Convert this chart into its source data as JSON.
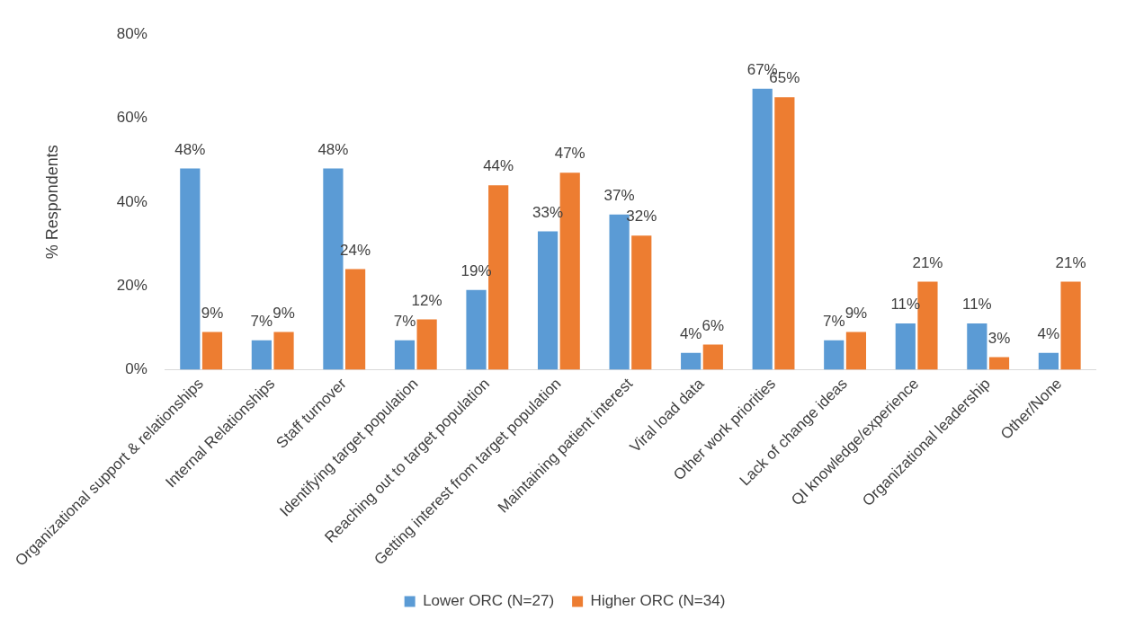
{
  "chart_data": {
    "type": "bar",
    "ylabel": "% Respondents",
    "categories": [
      "Organizational support & relationships",
      "Internal Relationships",
      "Staff turnover",
      "Identifying target population",
      "Reaching out to target population",
      "Getting interest from target population",
      "Maintaining patient interest",
      "Viral load data",
      "Other work priorities",
      "Lack of change ideas",
      "QI knowledge/experience",
      "Organizational leadership",
      "Other/None"
    ],
    "series": [
      {
        "name": "Lower ORC (N=27)",
        "color": "#5b9bd5",
        "values": [
          48,
          7,
          48,
          7,
          19,
          33,
          37,
          4,
          67,
          7,
          11,
          11,
          4
        ],
        "value_labels": [
          "48%",
          "7%",
          "48%",
          "7%",
          "19%",
          "33%",
          "37%",
          "4%",
          "67%",
          "7%",
          "11%",
          "11%",
          "4%"
        ]
      },
      {
        "name": "Higher ORC (N=34)",
        "color": "#ed7d31",
        "values": [
          9,
          9,
          24,
          12,
          44,
          47,
          32,
          6,
          65,
          9,
          21,
          3,
          21
        ],
        "value_labels": [
          "9%",
          "9%",
          "24%",
          "12%",
          "44%",
          "47%",
          "32%",
          "6%",
          "65%",
          "9%",
          "21%",
          "3%",
          "21%"
        ]
      }
    ],
    "ylim": [
      0,
      80
    ],
    "yticks": [
      {
        "value": 0,
        "label": "0%"
      },
      {
        "value": 20,
        "label": "20%"
      },
      {
        "value": 40,
        "label": "40%"
      },
      {
        "value": 60,
        "label": "60%"
      },
      {
        "value": 80,
        "label": "80%"
      }
    ],
    "grid": false,
    "legend": "bottom"
  }
}
